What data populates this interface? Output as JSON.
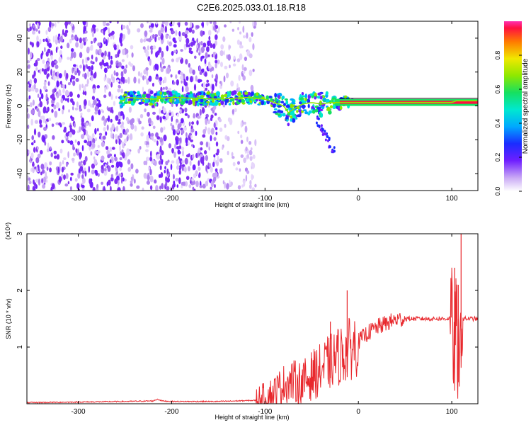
{
  "title": "C2E6.2025.033.01.18.R18",
  "chart_data": [
    {
      "type": "heatmap",
      "xlabel": "Height of straight line (km)",
      "ylabel": "Frequency (Hz)",
      "xlim": [
        -355,
        128
      ],
      "ylim": [
        -50,
        50
      ],
      "xticks": [
        -300,
        -200,
        -100,
        0,
        100
      ],
      "yticks": [
        -40,
        -20,
        0,
        20,
        40
      ],
      "colorbar": {
        "label": "Normalized spectral amplitude",
        "range": [
          0.0,
          1.0
        ],
        "ticks": [
          "0.0",
          "0.2",
          "0.4",
          "0.6",
          "0.8"
        ]
      },
      "signal_track": {
        "x": [
          -250,
          -220,
          -200,
          -150,
          -120,
          -100,
          -90,
          -80,
          -75,
          -70,
          -60,
          -50,
          -40,
          -30,
          -20,
          0,
          50,
          100,
          105
        ],
        "freq": [
          5,
          4,
          5,
          4,
          5,
          4,
          2,
          0,
          -4,
          -2,
          1,
          2,
          1,
          2,
          2,
          2,
          2,
          2,
          3
        ]
      },
      "grid": false
    },
    {
      "type": "line",
      "xlabel": "Height of straight line (km)",
      "ylabel": "SNR (10 * v/v)",
      "y_multiplier": "(x10⁴)",
      "xlim": [
        -355,
        128
      ],
      "ylim": [
        0,
        3
      ],
      "xticks": [
        -300,
        -200,
        -100,
        0,
        100
      ],
      "yticks": [
        1,
        2,
        3
      ],
      "series": [
        {
          "color": "#e8282d",
          "x": [
            -355,
            -300,
            -250,
            -220,
            -215,
            -210,
            -200,
            -150,
            -110,
            -100,
            -90,
            -80,
            -70,
            -60,
            -50,
            -40,
            -30,
            -20,
            -10,
            0,
            10,
            20,
            30,
            40,
            50,
            60,
            70,
            80,
            90,
            95,
            100,
            102,
            105,
            108,
            110,
            115,
            128
          ],
          "y": [
            0.02,
            0.03,
            0.04,
            0.05,
            0.08,
            0.05,
            0.04,
            0.04,
            0.06,
            0.1,
            0.2,
            0.35,
            0.4,
            0.35,
            0.5,
            0.6,
            0.75,
            0.85,
            0.95,
            1.1,
            1.25,
            1.35,
            1.42,
            1.48,
            1.5,
            1.5,
            1.5,
            1.5,
            1.5,
            1.5,
            1.52,
            0.8,
            1.5,
            0.2,
            1.5,
            1.5,
            1.5
          ]
        }
      ],
      "spikes": [
        {
          "x": 103,
          "y": 2.4
        },
        {
          "x": 107,
          "y": 2.1
        },
        {
          "x": 110,
          "y": 3.0
        },
        {
          "x": -12,
          "y": 2.0
        },
        {
          "x": -30,
          "y": 1.45
        },
        {
          "x": -50,
          "y": 0.8
        }
      ],
      "grid": false
    }
  ]
}
